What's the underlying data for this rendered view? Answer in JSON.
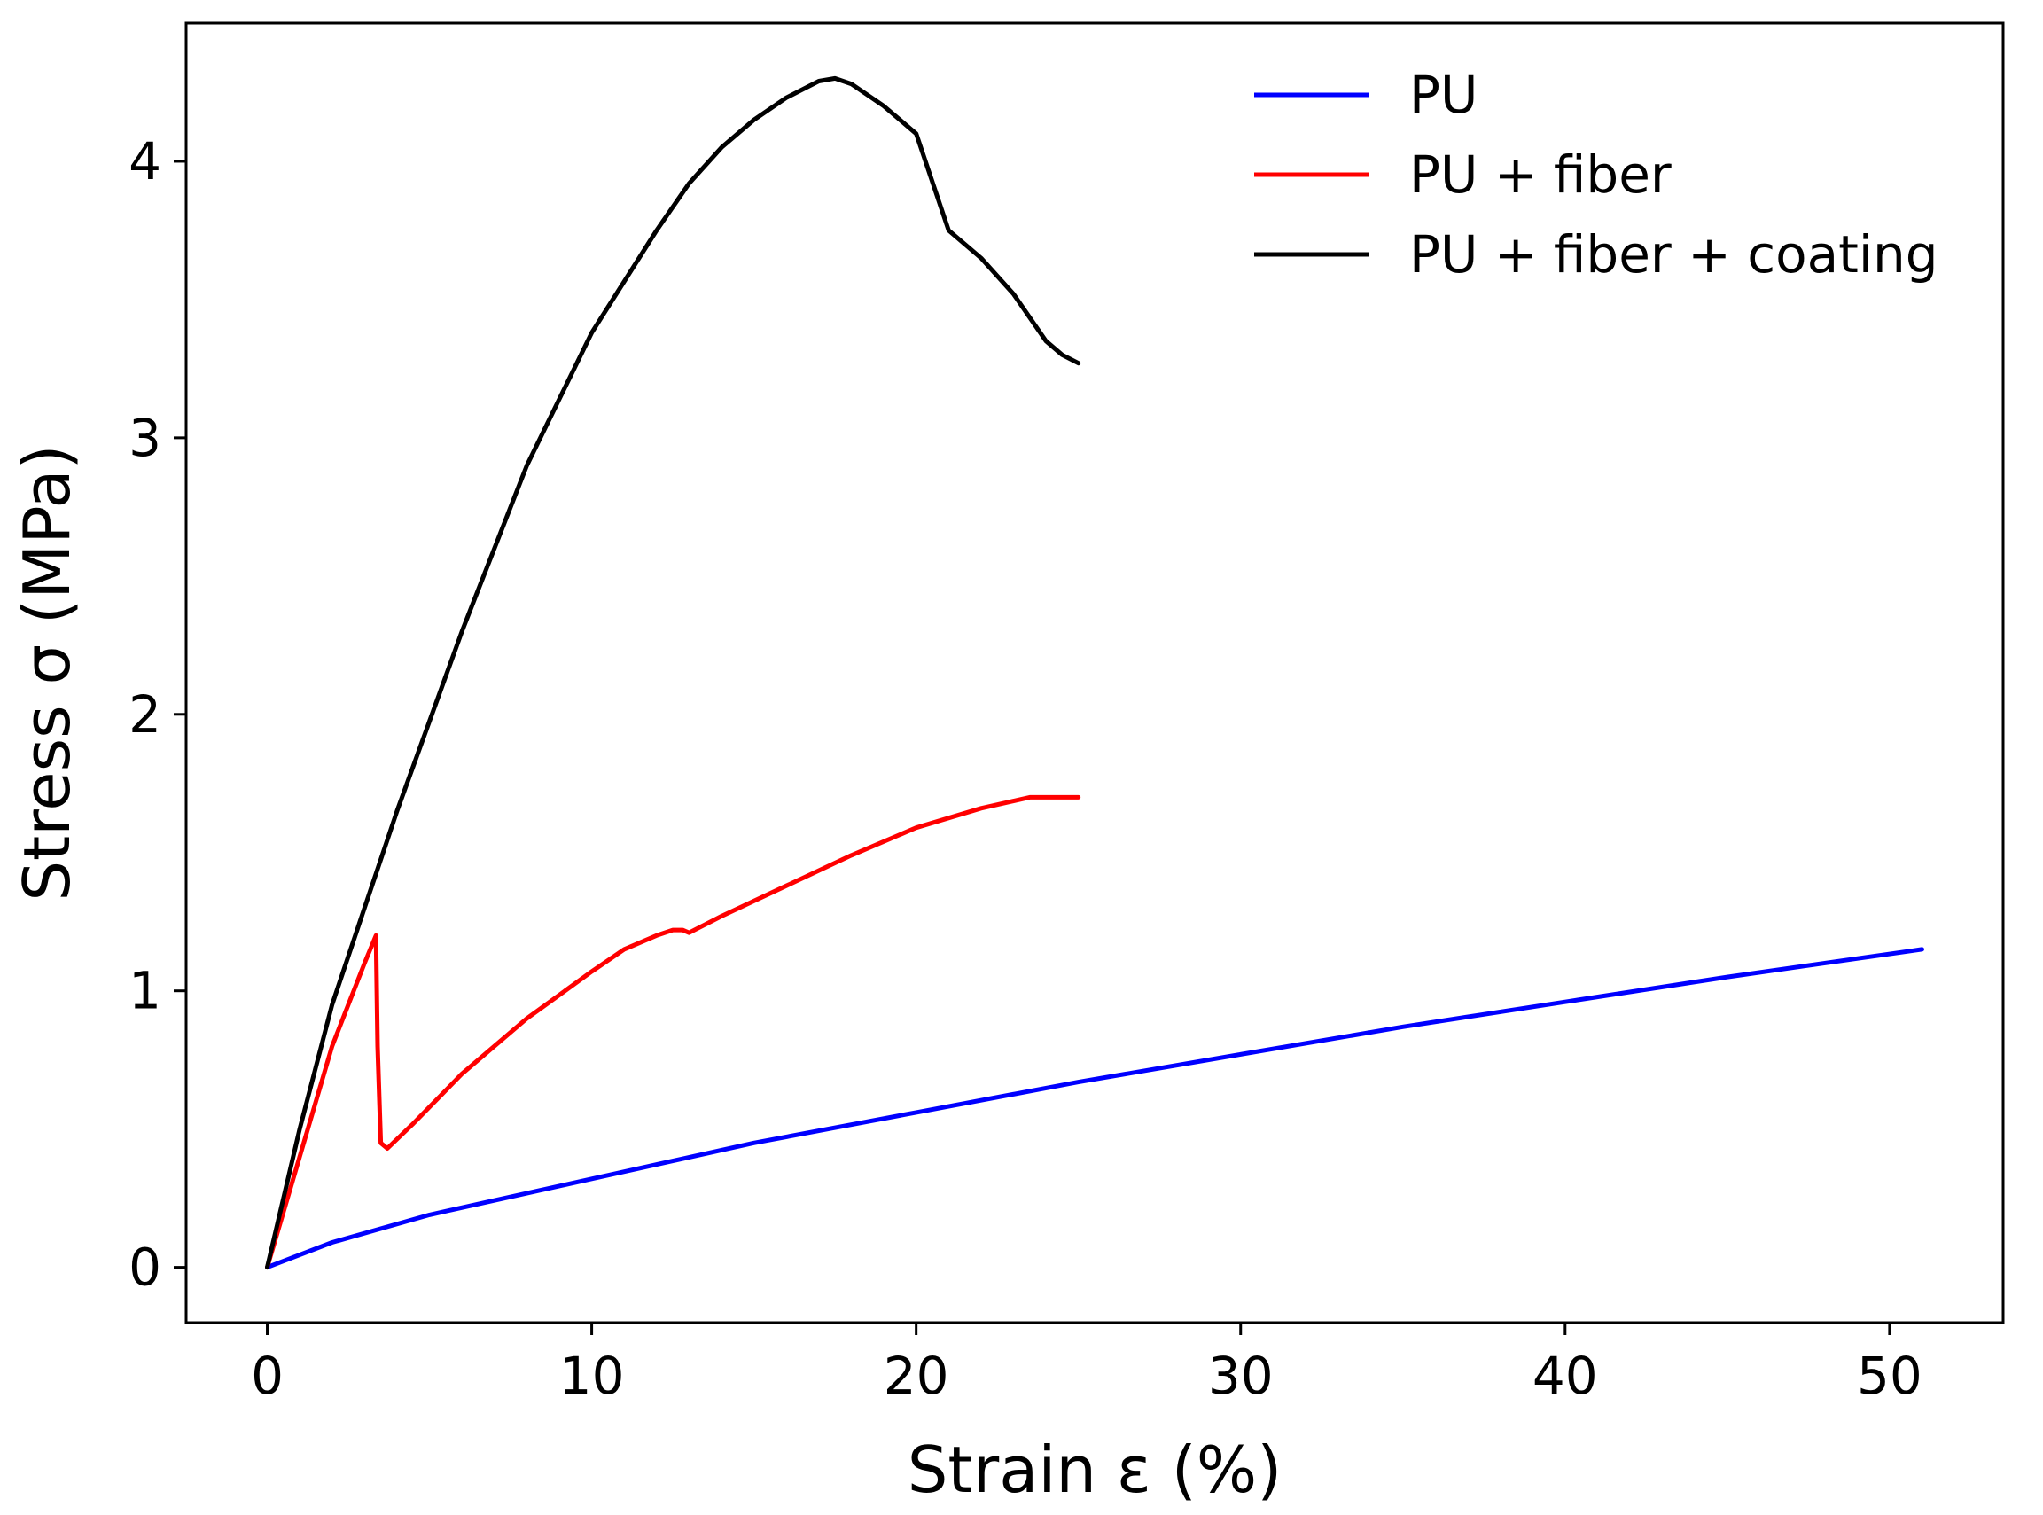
{
  "chart_data": {
    "type": "line",
    "title": "",
    "xlabel": "Strain ε (%)",
    "ylabel": "Stress σ (MPa)",
    "xlim": [
      -2.5,
      53.5
    ],
    "ylim": [
      -0.2,
      4.5
    ],
    "xticks": [
      0,
      10,
      20,
      30,
      40,
      50
    ],
    "yticks": [
      0,
      1,
      2,
      3,
      4
    ],
    "grid": false,
    "legend_position": "top-right",
    "series": [
      {
        "name": "PU",
        "color": "#0000ff",
        "x": [
          0,
          2,
          5,
          10,
          15,
          20,
          25,
          30,
          35,
          40,
          45,
          51
        ],
        "y": [
          0,
          0.09,
          0.19,
          0.32,
          0.45,
          0.56,
          0.67,
          0.77,
          0.87,
          0.96,
          1.05,
          1.15
        ]
      },
      {
        "name": "PU + fiber",
        "color": "#ff0000",
        "x": [
          0,
          1,
          2,
          3,
          3.35,
          3.4,
          3.5,
          3.7,
          4.5,
          6,
          8,
          10,
          11,
          12,
          12.5,
          12.8,
          13,
          14,
          16,
          18,
          20,
          22,
          23.5,
          25
        ],
        "y": [
          0,
          0.4,
          0.8,
          1.1,
          1.2,
          0.8,
          0.45,
          0.43,
          0.52,
          0.7,
          0.9,
          1.07,
          1.15,
          1.2,
          1.22,
          1.22,
          1.21,
          1.27,
          1.38,
          1.49,
          1.59,
          1.66,
          1.7,
          1.7
        ]
      },
      {
        "name": "PU + fiber + coating",
        "color": "#000000",
        "x": [
          0,
          1,
          2,
          3,
          4,
          6,
          8,
          10,
          12,
          13,
          14,
          15,
          16,
          17,
          17.5,
          18,
          19,
          20,
          21,
          22,
          23,
          24,
          24.5,
          25
        ],
        "y": [
          0,
          0.5,
          0.95,
          1.3,
          1.65,
          2.3,
          2.9,
          3.38,
          3.75,
          3.92,
          4.05,
          4.15,
          4.23,
          4.29,
          4.3,
          4.28,
          4.2,
          4.1,
          3.75,
          3.65,
          3.52,
          3.35,
          3.3,
          3.27
        ]
      }
    ]
  }
}
